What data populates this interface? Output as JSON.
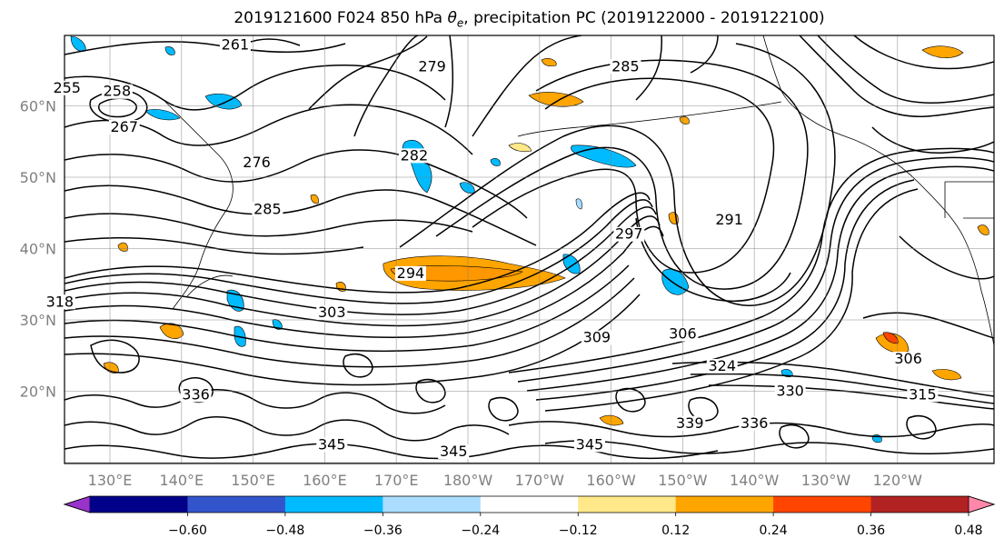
{
  "title": {
    "prefix": "2019121600 F024 850 hPa ",
    "symbol": "θ",
    "subscript": "e",
    "suffix": ", precipitation PC (2019122000 - 2019122100)"
  },
  "axes": {
    "lat_ticks": [
      {
        "value": 60,
        "label": "60°N"
      },
      {
        "value": 50,
        "label": "50°N"
      },
      {
        "value": 40,
        "label": "40°N"
      },
      {
        "value": 30,
        "label": "30°N"
      },
      {
        "value": 20,
        "label": "20°N"
      }
    ],
    "lon_ticks": [
      {
        "value": 130,
        "label": "130°E"
      },
      {
        "value": 140,
        "label": "140°E"
      },
      {
        "value": 150,
        "label": "150°E"
      },
      {
        "value": 160,
        "label": "160°E"
      },
      {
        "value": 170,
        "label": "170°E"
      },
      {
        "value": 180,
        "label": "180°W"
      },
      {
        "value": 190,
        "label": "170°W"
      },
      {
        "value": 200,
        "label": "160°W"
      },
      {
        "value": 210,
        "label": "150°W"
      },
      {
        "value": 220,
        "label": "140°W"
      },
      {
        "value": 230,
        "label": "130°W"
      },
      {
        "value": 240,
        "label": "120°W"
      }
    ],
    "lon_range": [
      120,
      250
    ],
    "lat_range": [
      10,
      70
    ],
    "grid": true
  },
  "colorbar": {
    "colors": [
      "#9933cc",
      "#000088",
      "#3355cc",
      "#00bbff",
      "#aaddff",
      "#ffffff",
      "#ffe88a",
      "#ffa500",
      "#ff4500",
      "#b22222",
      "#ff88aa"
    ],
    "tick_labels": [
      "−0.60",
      "−0.48",
      "−0.36",
      "−0.24",
      "−0.12",
      "0.12",
      "0.24",
      "0.36",
      "0.48",
      "0.60"
    ],
    "extend": "both"
  },
  "contour_labels": [
    {
      "text": "261",
      "lon": 147.5,
      "lat": 68.0
    },
    {
      "text": "255",
      "lon": 124.0,
      "lat": 62.0
    },
    {
      "text": "258",
      "lon": 131.0,
      "lat": 61.5
    },
    {
      "text": "267",
      "lon": 132.0,
      "lat": 56.5
    },
    {
      "text": "276",
      "lon": 150.5,
      "lat": 51.5
    },
    {
      "text": "279",
      "lon": 175.0,
      "lat": 65.0
    },
    {
      "text": "282",
      "lon": 172.5,
      "lat": 52.5
    },
    {
      "text": "285",
      "lon": 152.0,
      "lat": 45.0
    },
    {
      "text": "285",
      "lon": 202.0,
      "lat": 65.0
    },
    {
      "text": "291",
      "lon": 216.5,
      "lat": 43.5
    },
    {
      "text": "297",
      "lon": 202.5,
      "lat": 41.5
    },
    {
      "text": "294",
      "lon": 172.0,
      "lat": 36.0
    },
    {
      "text": "303",
      "lon": 161.0,
      "lat": 30.5
    },
    {
      "text": "309",
      "lon": 198.0,
      "lat": 27.0
    },
    {
      "text": "306",
      "lon": 210.0,
      "lat": 27.5
    },
    {
      "text": "324",
      "lon": 215.5,
      "lat": 23.0
    },
    {
      "text": "306",
      "lon": 241.5,
      "lat": 24.0
    },
    {
      "text": "330",
      "lon": 225.0,
      "lat": 19.5
    },
    {
      "text": "315",
      "lon": 243.5,
      "lat": 19.0
    },
    {
      "text": "336",
      "lon": 142.0,
      "lat": 19.0
    },
    {
      "text": "339",
      "lon": 211.0,
      "lat": 15.0
    },
    {
      "text": "336",
      "lon": 220.0,
      "lat": 15.0
    },
    {
      "text": "345",
      "lon": 161.0,
      "lat": 12.0
    },
    {
      "text": "345",
      "lon": 178.0,
      "lat": 11.0
    },
    {
      "text": "345",
      "lon": 197.0,
      "lat": 12.0
    },
    {
      "text": "318",
      "lon": 123.0,
      "lat": 32.0
    }
  ]
}
